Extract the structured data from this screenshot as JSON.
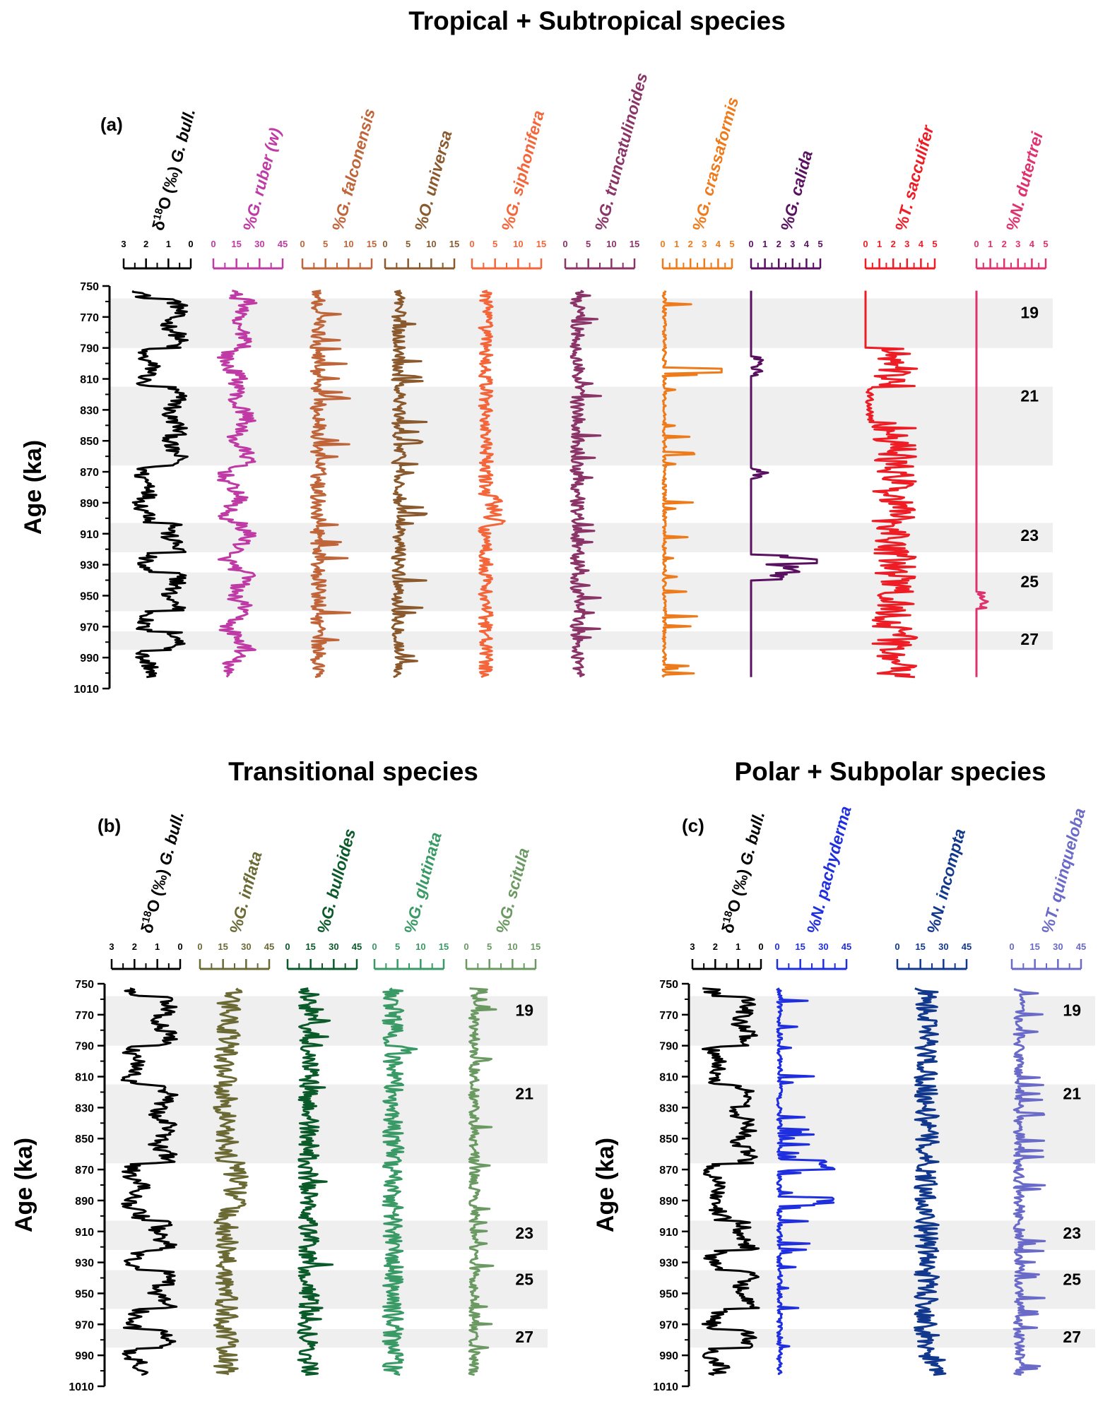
{
  "chart_data": [
    {
      "id": "a",
      "type": "line",
      "title": "Tropical + Subtropical species",
      "panel_label": "(a)",
      "ylabel": "Age (ka)",
      "ylim": [
        750,
        1010
      ],
      "yticks": [
        "750",
        "770",
        "790",
        "810",
        "830",
        "850",
        "870",
        "890",
        "910",
        "930",
        "950",
        "970",
        "990",
        "1010"
      ],
      "mis_labels": [
        {
          "text": "19",
          "age": 767
        },
        {
          "text": "21",
          "age": 821
        },
        {
          "text": "23",
          "age": 911
        },
        {
          "text": "25",
          "age": 941
        },
        {
          "text": "27",
          "age": 978
        }
      ],
      "shaded_intervals_ka": [
        [
          758,
          790
        ],
        [
          815,
          866
        ],
        [
          903,
          922
        ],
        [
          935,
          960
        ],
        [
          973,
          985
        ]
      ],
      "series": [
        {
          "label_prefix": "δ",
          "label_sup": "18",
          "label_main": "O (‰) ",
          "label_italic": "G. bull.",
          "color": "#000000",
          "xlim": [
            3,
            0
          ],
          "ticks": [
            "3",
            "2",
            "1",
            "0"
          ],
          "kind": "d18o"
        },
        {
          "label_prefix": "",
          "label_sup": "",
          "label_main": "%",
          "label_italic": "G. ruber (w)",
          "color": "#c03aa6",
          "xlim": [
            0,
            45
          ],
          "ticks": [
            "0",
            "15",
            "30",
            "45"
          ],
          "kind": "ruber"
        },
        {
          "label_prefix": "",
          "label_sup": "",
          "label_main": "%",
          "label_italic": "G. falconensis",
          "color": "#c0653a",
          "xlim": [
            0,
            15
          ],
          "ticks": [
            "0",
            "5",
            "10",
            "15"
          ],
          "kind": "falconensis"
        },
        {
          "label_prefix": "",
          "label_sup": "",
          "label_main": "%",
          "label_italic": "O. universa",
          "color": "#8a5a2e",
          "xlim": [
            0,
            15
          ],
          "ticks": [
            "0",
            "5",
            "10",
            "15"
          ],
          "kind": "universa"
        },
        {
          "label_prefix": "",
          "label_sup": "",
          "label_main": "%",
          "label_italic": "G. siphonifera",
          "color": "#f5653a",
          "xlim": [
            0,
            15
          ],
          "ticks": [
            "0",
            "5",
            "10",
            "15"
          ],
          "kind": "siphonifera"
        },
        {
          "label_prefix": "",
          "label_sup": "",
          "label_main": "%",
          "label_italic": "G. truncatulinoides",
          "color": "#8b3468",
          "xlim": [
            0,
            15
          ],
          "ticks": [
            "0",
            "5",
            "10",
            "15"
          ],
          "kind": "truncatulinoides"
        },
        {
          "label_prefix": "",
          "label_sup": "",
          "label_main": "%",
          "label_italic": "G. crassaformis",
          "color": "#ef7a1a",
          "xlim": [
            0,
            5
          ],
          "ticks": [
            "0",
            "1",
            "2",
            "3",
            "4",
            "5"
          ],
          "kind": "crassaformis"
        },
        {
          "label_prefix": "",
          "label_sup": "",
          "label_main": "%",
          "label_italic": "G. calida",
          "color": "#5a1060",
          "xlim": [
            0,
            5
          ],
          "ticks": [
            "0",
            "1",
            "2",
            "3",
            "4",
            "5"
          ],
          "kind": "calida"
        },
        {
          "label_prefix": "",
          "label_sup": "",
          "label_main": "%",
          "label_italic": "T. sacculifer",
          "color": "#ee1c25",
          "xlim": [
            0,
            5
          ],
          "ticks": [
            "0",
            "1",
            "2",
            "3",
            "4",
            "5"
          ],
          "kind": "sacculifer"
        },
        {
          "label_prefix": "",
          "label_sup": "",
          "label_main": "%",
          "label_italic": "N. dutertrei",
          "color": "#e0306e",
          "xlim": [
            0,
            5
          ],
          "ticks": [
            "0",
            "1",
            "2",
            "3",
            "4",
            "5"
          ],
          "kind": "dutertrei"
        }
      ]
    },
    {
      "id": "b",
      "type": "line",
      "title": "Transitional species",
      "panel_label": "(b)",
      "ylabel": "Age (ka)",
      "ylim": [
        750,
        1010
      ],
      "yticks": [
        "750",
        "770",
        "790",
        "810",
        "830",
        "850",
        "870",
        "890",
        "910",
        "930",
        "950",
        "970",
        "990",
        "1010"
      ],
      "mis_labels": [
        {
          "text": "19",
          "age": 767
        },
        {
          "text": "21",
          "age": 821
        },
        {
          "text": "23",
          "age": 911
        },
        {
          "text": "25",
          "age": 941
        },
        {
          "text": "27",
          "age": 978
        }
      ],
      "shaded_intervals_ka": [
        [
          758,
          790
        ],
        [
          815,
          866
        ],
        [
          903,
          922
        ],
        [
          935,
          960
        ],
        [
          973,
          985
        ]
      ],
      "series": [
        {
          "label_prefix": "δ",
          "label_sup": "18",
          "label_main": "O (‰) ",
          "label_italic": "G. bull.",
          "color": "#000000",
          "xlim": [
            3,
            0
          ],
          "ticks": [
            "3",
            "2",
            "1",
            "0"
          ],
          "kind": "d18o"
        },
        {
          "label_prefix": "",
          "label_sup": "",
          "label_main": "%",
          "label_italic": "G. inflata",
          "color": "#6b6a35",
          "xlim": [
            0,
            45
          ],
          "ticks": [
            "0",
            "15",
            "30",
            "45"
          ],
          "kind": "inflata"
        },
        {
          "label_prefix": "",
          "label_sup": "",
          "label_main": "%",
          "label_italic": "G. bulloides",
          "color": "#0a5a2a",
          "xlim": [
            0,
            45
          ],
          "ticks": [
            "0",
            "15",
            "30",
            "45"
          ],
          "kind": "bulloides"
        },
        {
          "label_prefix": "",
          "label_sup": "",
          "label_main": "%",
          "label_italic": "G. glutinata",
          "color": "#3a9a66",
          "xlim": [
            0,
            15
          ],
          "ticks": [
            "0",
            "5",
            "10",
            "15"
          ],
          "kind": "glutinata"
        },
        {
          "label_prefix": "",
          "label_sup": "",
          "label_main": "%",
          "label_italic": "G. scitula",
          "color": "#6a9a62",
          "xlim": [
            0,
            15
          ],
          "ticks": [
            "0",
            "5",
            "10",
            "15"
          ],
          "kind": "scitula"
        }
      ]
    },
    {
      "id": "c",
      "type": "line",
      "title": "Polar + Subpolar species",
      "panel_label": "(c)",
      "ylabel": "Age (ka)",
      "ylim": [
        750,
        1010
      ],
      "yticks": [
        "750",
        "770",
        "790",
        "810",
        "830",
        "850",
        "870",
        "890",
        "910",
        "930",
        "950",
        "970",
        "990",
        "1010"
      ],
      "mis_labels": [
        {
          "text": "19",
          "age": 767
        },
        {
          "text": "21",
          "age": 821
        },
        {
          "text": "23",
          "age": 911
        },
        {
          "text": "25",
          "age": 941
        },
        {
          "text": "27",
          "age": 978
        }
      ],
      "shaded_intervals_ka": [
        [
          758,
          790
        ],
        [
          815,
          866
        ],
        [
          903,
          922
        ],
        [
          935,
          960
        ],
        [
          973,
          985
        ]
      ],
      "series": [
        {
          "label_prefix": "δ",
          "label_sup": "18",
          "label_main": "O (‰) ",
          "label_italic": "G. bull.",
          "color": "#000000",
          "xlim": [
            3,
            0
          ],
          "ticks": [
            "3",
            "2",
            "1",
            "0"
          ],
          "kind": "d18o"
        },
        {
          "label_prefix": "",
          "label_sup": "",
          "label_main": "%",
          "label_italic": "N. pachyderma",
          "color": "#1f2fe0",
          "xlim": [
            0,
            45
          ],
          "ticks": [
            "0",
            "15",
            "30",
            "45"
          ],
          "kind": "pachyderma"
        },
        {
          "label_prefix": "",
          "label_sup": "",
          "label_main": "%",
          "label_italic": "N. incompta",
          "color": "#12388e",
          "xlim": [
            0,
            45
          ],
          "ticks": [
            "0",
            "15",
            "30",
            "45"
          ],
          "kind": "incompta"
        },
        {
          "label_prefix": "",
          "label_sup": "",
          "label_main": "%",
          "label_italic": "T. quinqueloba",
          "color": "#6a6ac8",
          "xlim": [
            0,
            45
          ],
          "ticks": [
            "0",
            "15",
            "30",
            "45"
          ],
          "kind": "quinqueloba"
        }
      ]
    }
  ]
}
